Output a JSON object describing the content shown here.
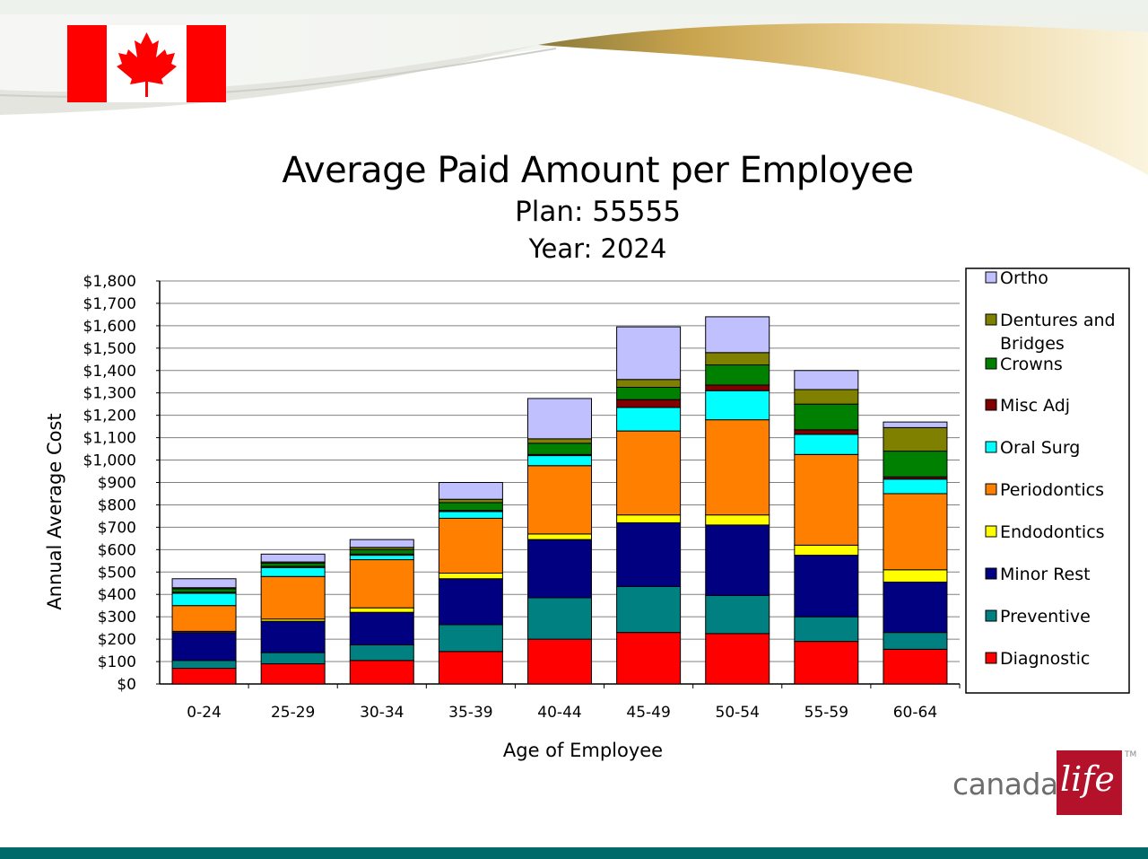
{
  "header": {
    "title": "Average Paid Amount per Employee",
    "plan_line": "Plan: 55555",
    "year_line": "Year: 2024"
  },
  "logo": {
    "word": "canada",
    "script": "life",
    "tm": "TM"
  },
  "colors": {
    "flag_red": "#ff0000",
    "brand_red": "#b4122a",
    "bottom_bar": "#006a6a",
    "swoosh_gold": "#d8b871"
  },
  "chart_data": {
    "type": "bar",
    "stacked": true,
    "title": "Average Paid Amount per Employee",
    "subtitle": [
      "Plan: 55555",
      "Year: 2024"
    ],
    "xlabel": "Age of Employee",
    "ylabel": "Annual Average Cost",
    "ylim": [
      0,
      1800
    ],
    "ytick_step": 100,
    "grid": true,
    "legend_position": "right",
    "categories": [
      "0-24",
      "25-29",
      "30-34",
      "35-39",
      "40-44",
      "45-49",
      "50-54",
      "55-59",
      "60-64"
    ],
    "y_tick_labels": [
      "$0",
      "$100",
      "$200",
      "$300",
      "$400",
      "$500",
      "$600",
      "$700",
      "$800",
      "$900",
      "$1,000",
      "$1,100",
      "$1,200",
      "$1,300",
      "$1,400",
      "$1,500",
      "$1,600",
      "$1,700",
      "$1,800"
    ],
    "series": [
      {
        "name": "Diagnostic",
        "color": "#ff0000",
        "values": [
          70,
          90,
          105,
          145,
          200,
          230,
          225,
          190,
          155
        ]
      },
      {
        "name": "Preventive",
        "color": "#008080",
        "values": [
          35,
          50,
          70,
          120,
          185,
          205,
          170,
          110,
          75
        ]
      },
      {
        "name": "Minor Rest",
        "color": "#000080",
        "values": [
          125,
          140,
          145,
          205,
          260,
          285,
          315,
          275,
          225
        ]
      },
      {
        "name": "Endodontics",
        "color": "#ffff00",
        "values": [
          5,
          10,
          20,
          25,
          25,
          35,
          45,
          45,
          55
        ]
      },
      {
        "name": "Periodontics",
        "color": "#ff8000",
        "values": [
          115,
          190,
          215,
          245,
          305,
          375,
          425,
          405,
          340
        ]
      },
      {
        "name": "Oral Surg",
        "color": "#00ffff",
        "values": [
          55,
          40,
          20,
          30,
          45,
          105,
          130,
          90,
          65
        ]
      },
      {
        "name": "Misc Adj",
        "color": "#800000",
        "values": [
          5,
          5,
          5,
          5,
          5,
          35,
          25,
          20,
          10
        ]
      },
      {
        "name": "Crowns",
        "color": "#008000",
        "values": [
          15,
          15,
          20,
          35,
          50,
          55,
          90,
          115,
          115
        ]
      },
      {
        "name": "Dentures and Bridges",
        "color": "#808000",
        "values": [
          5,
          5,
          10,
          15,
          20,
          35,
          55,
          65,
          105
        ]
      },
      {
        "name": "Ortho",
        "color": "#c0c0ff",
        "values": [
          40,
          35,
          35,
          75,
          180,
          235,
          160,
          85,
          25
        ]
      }
    ]
  }
}
